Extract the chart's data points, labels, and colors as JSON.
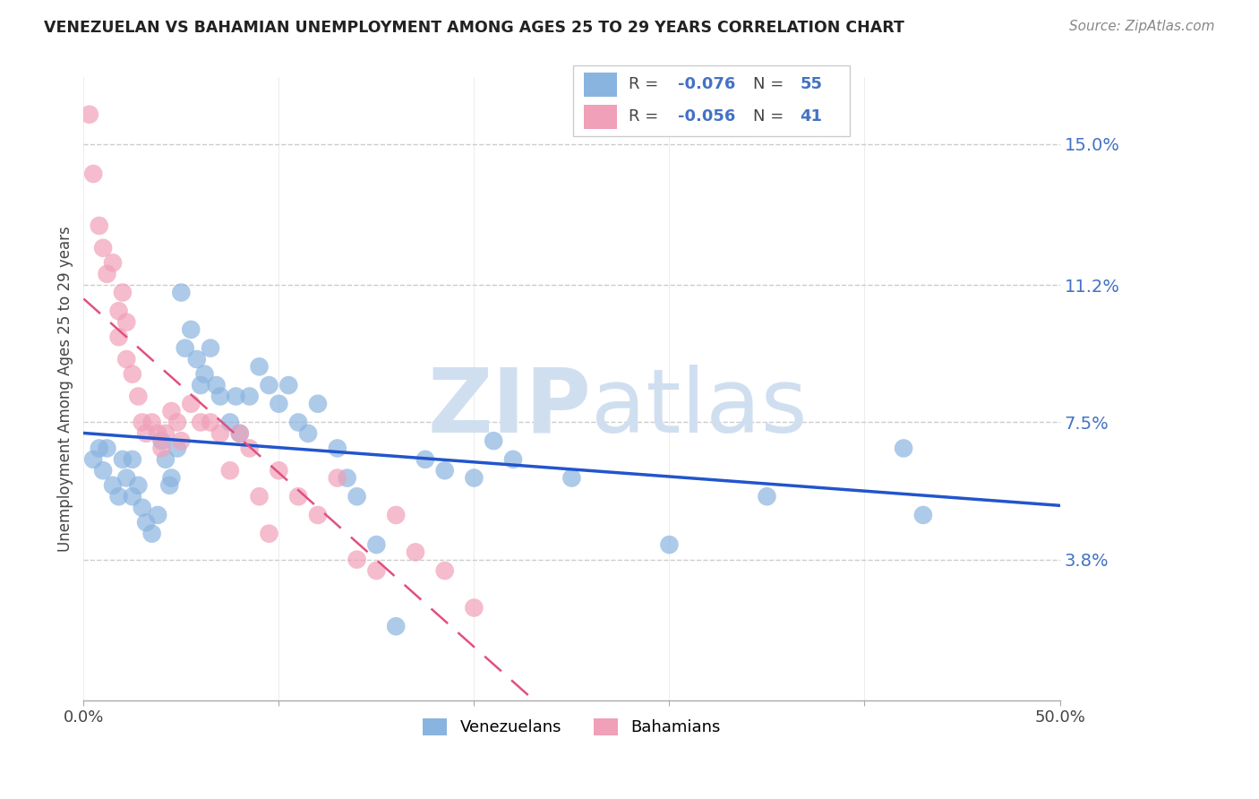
{
  "title": "VENEZUELAN VS BAHAMIAN UNEMPLOYMENT AMONG AGES 25 TO 29 YEARS CORRELATION CHART",
  "source": "Source: ZipAtlas.com",
  "ylabel": "Unemployment Among Ages 25 to 29 years",
  "xlim": [
    0.0,
    0.5
  ],
  "ylim": [
    0.0,
    0.168
  ],
  "yticks": [
    0.038,
    0.075,
    0.112,
    0.15
  ],
  "ytick_labels": [
    "3.8%",
    "7.5%",
    "11.2%",
    "15.0%"
  ],
  "xticks": [
    0.0,
    0.1,
    0.2,
    0.3,
    0.4,
    0.5
  ],
  "x_label_override": [
    "0.0%",
    "",
    "",
    "",
    "",
    "50.0%"
  ],
  "venezuelan_R": "-0.076",
  "venezuelan_N": "55",
  "bahamian_R": "-0.056",
  "bahamian_N": "41",
  "blue_scatter_color": "#8ab4e0",
  "pink_scatter_color": "#f0a0b8",
  "blue_line_color": "#2255cc",
  "pink_line_color": "#e05080",
  "watermark_color": "#d0dff0",
  "grid_color": "#cccccc",
  "axis_label_color": "#4472c4",
  "venezuelans_x": [
    0.005,
    0.008,
    0.01,
    0.012,
    0.015,
    0.018,
    0.02,
    0.022,
    0.025,
    0.025,
    0.028,
    0.03,
    0.032,
    0.035,
    0.038,
    0.04,
    0.042,
    0.044,
    0.045,
    0.048,
    0.05,
    0.052,
    0.055,
    0.058,
    0.06,
    0.062,
    0.065,
    0.068,
    0.07,
    0.075,
    0.078,
    0.08,
    0.085,
    0.09,
    0.095,
    0.1,
    0.105,
    0.11,
    0.115,
    0.12,
    0.13,
    0.135,
    0.14,
    0.15,
    0.16,
    0.175,
    0.185,
    0.2,
    0.21,
    0.22,
    0.25,
    0.3,
    0.35,
    0.42,
    0.43
  ],
  "venezuelans_y": [
    0.065,
    0.068,
    0.062,
    0.068,
    0.058,
    0.055,
    0.065,
    0.06,
    0.055,
    0.065,
    0.058,
    0.052,
    0.048,
    0.045,
    0.05,
    0.07,
    0.065,
    0.058,
    0.06,
    0.068,
    0.11,
    0.095,
    0.1,
    0.092,
    0.085,
    0.088,
    0.095,
    0.085,
    0.082,
    0.075,
    0.082,
    0.072,
    0.082,
    0.09,
    0.085,
    0.08,
    0.085,
    0.075,
    0.072,
    0.08,
    0.068,
    0.06,
    0.055,
    0.042,
    0.02,
    0.065,
    0.062,
    0.06,
    0.07,
    0.065,
    0.06,
    0.042,
    0.055,
    0.068,
    0.05
  ],
  "bahamians_x": [
    0.003,
    0.005,
    0.008,
    0.01,
    0.012,
    0.015,
    0.018,
    0.018,
    0.02,
    0.022,
    0.022,
    0.025,
    0.028,
    0.03,
    0.032,
    0.035,
    0.038,
    0.04,
    0.042,
    0.045,
    0.048,
    0.05,
    0.055,
    0.06,
    0.065,
    0.07,
    0.075,
    0.08,
    0.085,
    0.09,
    0.095,
    0.1,
    0.11,
    0.12,
    0.13,
    0.14,
    0.15,
    0.16,
    0.17,
    0.185,
    0.2
  ],
  "bahamians_y": [
    0.158,
    0.142,
    0.128,
    0.122,
    0.115,
    0.118,
    0.105,
    0.098,
    0.11,
    0.092,
    0.102,
    0.088,
    0.082,
    0.075,
    0.072,
    0.075,
    0.072,
    0.068,
    0.072,
    0.078,
    0.075,
    0.07,
    0.08,
    0.075,
    0.075,
    0.072,
    0.062,
    0.072,
    0.068,
    0.055,
    0.045,
    0.062,
    0.055,
    0.05,
    0.06,
    0.038,
    0.035,
    0.05,
    0.04,
    0.035,
    0.025
  ]
}
